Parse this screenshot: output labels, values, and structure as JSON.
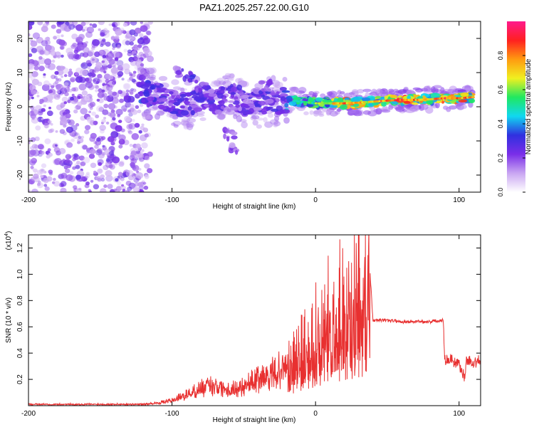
{
  "title": "PAZ1.2025.257.22.00.G10",
  "colors": {
    "snr_line": "#e83030",
    "spectral_base": "#7a2ee8",
    "colorbar": [
      "#ffffff",
      "#c9a6f2",
      "#7a2ee8",
      "#3030e0",
      "#10d8f0",
      "#20e860",
      "#f0f020",
      "#ff9a10",
      "#ff2020",
      "#ff1a8c"
    ]
  },
  "chart_data": [
    {
      "type": "heatmap",
      "xlabel": "Height of straight line (km)",
      "ylabel": "Frequency (Hz)",
      "xlim": [
        -200,
        115
      ],
      "ylim": [
        -25,
        25
      ],
      "x_ticks": [
        -200,
        -100,
        0,
        100
      ],
      "x_tick_labels": [
        "-200",
        "-100",
        "0",
        "100"
      ],
      "y_ticks": [
        -20,
        -10,
        0,
        10,
        20
      ],
      "y_tick_labels": [
        "-20",
        "-10",
        "0",
        "10",
        "20"
      ],
      "colorbar": {
        "label": "Normalized spectral amplitude",
        "range": [
          0,
          1
        ],
        "ticks": [
          0.0,
          0.2,
          0.4,
          0.6,
          0.8
        ],
        "tick_labels": [
          "0.0",
          "0.2",
          "0.4",
          "0.6",
          "0.8"
        ]
      },
      "noise_region": {
        "x_from": -200,
        "x_to": -115,
        "amplitude": 0.15
      },
      "signal_track": [
        {
          "x": -122,
          "freq": 4.0,
          "amp": 0.35
        },
        {
          "x": -110,
          "freq": 3.5,
          "amp": 0.3
        },
        {
          "x": -100,
          "freq": 1.5,
          "amp": 0.3
        },
        {
          "x": -90,
          "freq": 0.0,
          "amp": 0.28
        },
        {
          "x": -80,
          "freq": 3.0,
          "amp": 0.3
        },
        {
          "x": -70,
          "freq": 1.5,
          "amp": 0.28
        },
        {
          "x": -60,
          "freq": 2.5,
          "amp": 0.28
        },
        {
          "x": -50,
          "freq": 1.0,
          "amp": 0.28
        },
        {
          "x": -40,
          "freq": 1.0,
          "amp": 0.3
        },
        {
          "x": -30,
          "freq": 1.5,
          "amp": 0.3
        },
        {
          "x": -20,
          "freq": 2.0,
          "amp": 0.45
        },
        {
          "x": -10,
          "freq": 1.5,
          "amp": 0.55
        },
        {
          "x": 0,
          "freq": 1.0,
          "amp": 0.6
        },
        {
          "x": 10,
          "freq": 1.0,
          "amp": 0.7
        },
        {
          "x": 20,
          "freq": 1.0,
          "amp": 0.85
        },
        {
          "x": 30,
          "freq": 1.2,
          "amp": 0.75
        },
        {
          "x": 40,
          "freq": 1.5,
          "amp": 0.7
        },
        {
          "x": 50,
          "freq": 1.8,
          "amp": 0.85
        },
        {
          "x": 60,
          "freq": 2.0,
          "amp": 0.9
        },
        {
          "x": 70,
          "freq": 2.0,
          "amp": 0.8
        },
        {
          "x": 80,
          "freq": 2.2,
          "amp": 0.75
        },
        {
          "x": 90,
          "freq": 2.5,
          "amp": 0.9
        },
        {
          "x": 100,
          "freq": 2.5,
          "amp": 0.85
        },
        {
          "x": 110,
          "freq": 2.8,
          "amp": 0.8
        }
      ],
      "side_features": [
        {
          "x": -95,
          "freq": 10.0,
          "amp": 0.25
        },
        {
          "x": -88,
          "freq": 9.0,
          "amp": 0.28
        },
        {
          "x": -80,
          "freq": 6.0,
          "amp": 0.25
        },
        {
          "x": -55,
          "freq": 5.0,
          "amp": 0.25
        },
        {
          "x": -60,
          "freq": -8.0,
          "amp": 0.2
        },
        {
          "x": -57,
          "freq": -12.0,
          "amp": 0.2
        },
        {
          "x": -35,
          "freq": 6.0,
          "amp": 0.22
        }
      ]
    },
    {
      "type": "line",
      "xlabel": "Height of straight line (km)",
      "ylabel": "SNR (10 * v/v)",
      "y_scale_label": "(x10",
      "y_scale_exponent": "4",
      "xlim": [
        -200,
        115
      ],
      "ylim": [
        0,
        1.3
      ],
      "x_ticks": [
        -200,
        -100,
        0,
        100
      ],
      "x_tick_labels": [
        "-200",
        "-100",
        "0",
        "100"
      ],
      "y_ticks": [
        0.2,
        0.4,
        0.6,
        0.8,
        1.0,
        1.2
      ],
      "y_tick_labels": [
        "0.2",
        "0.4",
        "0.6",
        "0.8",
        "1.0",
        "1.2"
      ],
      "series": [
        {
          "x": [
            -200,
            -180,
            -160,
            -140,
            -120,
            -110,
            -100,
            -90,
            -80,
            -70,
            -60,
            -50,
            -40,
            -30,
            -20,
            -15,
            -10,
            -5,
            0,
            5,
            10,
            15,
            20,
            25,
            30,
            35,
            37,
            40,
            45,
            50,
            60,
            70,
            80,
            89,
            90,
            95,
            100,
            104,
            105,
            110,
            115
          ],
          "y": [
            0.01,
            0.01,
            0.01,
            0.01,
            0.01,
            0.02,
            0.04,
            0.08,
            0.13,
            0.16,
            0.12,
            0.15,
            0.2,
            0.24,
            0.3,
            0.35,
            0.42,
            0.5,
            0.56,
            0.63,
            0.68,
            0.72,
            0.78,
            0.8,
            0.85,
            0.9,
            1.2,
            0.65,
            0.65,
            0.65,
            0.64,
            0.64,
            0.64,
            0.65,
            0.35,
            0.35,
            0.32,
            0.2,
            0.34,
            0.33,
            0.34
          ]
        }
      ]
    }
  ]
}
